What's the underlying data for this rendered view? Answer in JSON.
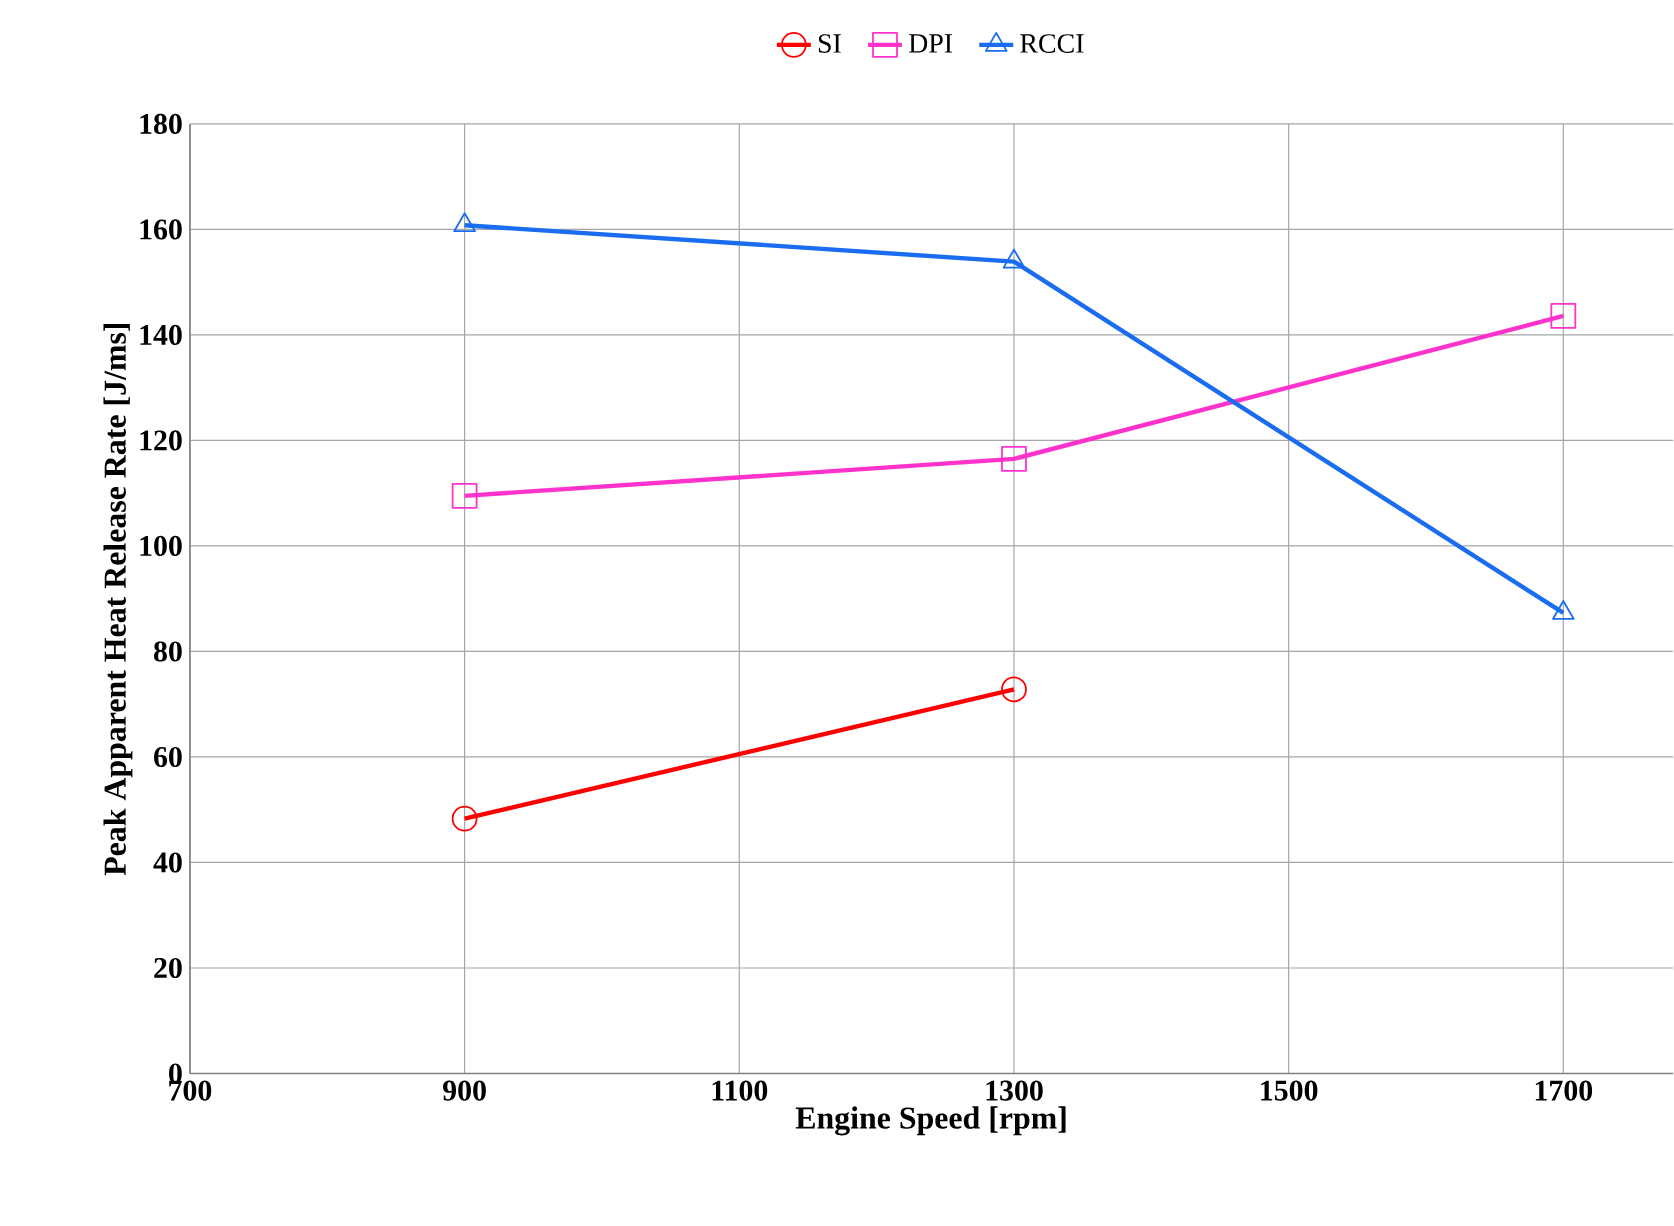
{
  "chart_data": {
    "type": "line",
    "xlabel": "Engine Speed [rpm]",
    "ylabel": "Peak Apparent Heat Release Rate [J/ms]",
    "xlim": [
      700,
      1780
    ],
    "xticks": [
      700,
      900,
      1100,
      1300,
      1500,
      1700
    ],
    "ylim": [
      0,
      180
    ],
    "yticks": [
      0,
      20,
      40,
      60,
      80,
      100,
      120,
      140,
      160,
      180
    ],
    "grid": true,
    "legend": "top",
    "line_style": "solid",
    "series": [
      {
        "name": "SI",
        "color": "#ff0000",
        "marker": "circle",
        "x": [
          900,
          1300
        ],
        "values": [
          48.3,
          72.8
        ]
      },
      {
        "name": "DPI",
        "color": "#ff33cc",
        "marker": "square",
        "x": [
          900,
          1300,
          1700
        ],
        "values": [
          109.5,
          116.5,
          143.6
        ]
      },
      {
        "name": "RCCI",
        "color": "#1a6cf0",
        "marker": "triangle",
        "x": [
          900,
          1300,
          1700
        ],
        "values": [
          160.8,
          153.9,
          87.3
        ]
      }
    ]
  }
}
